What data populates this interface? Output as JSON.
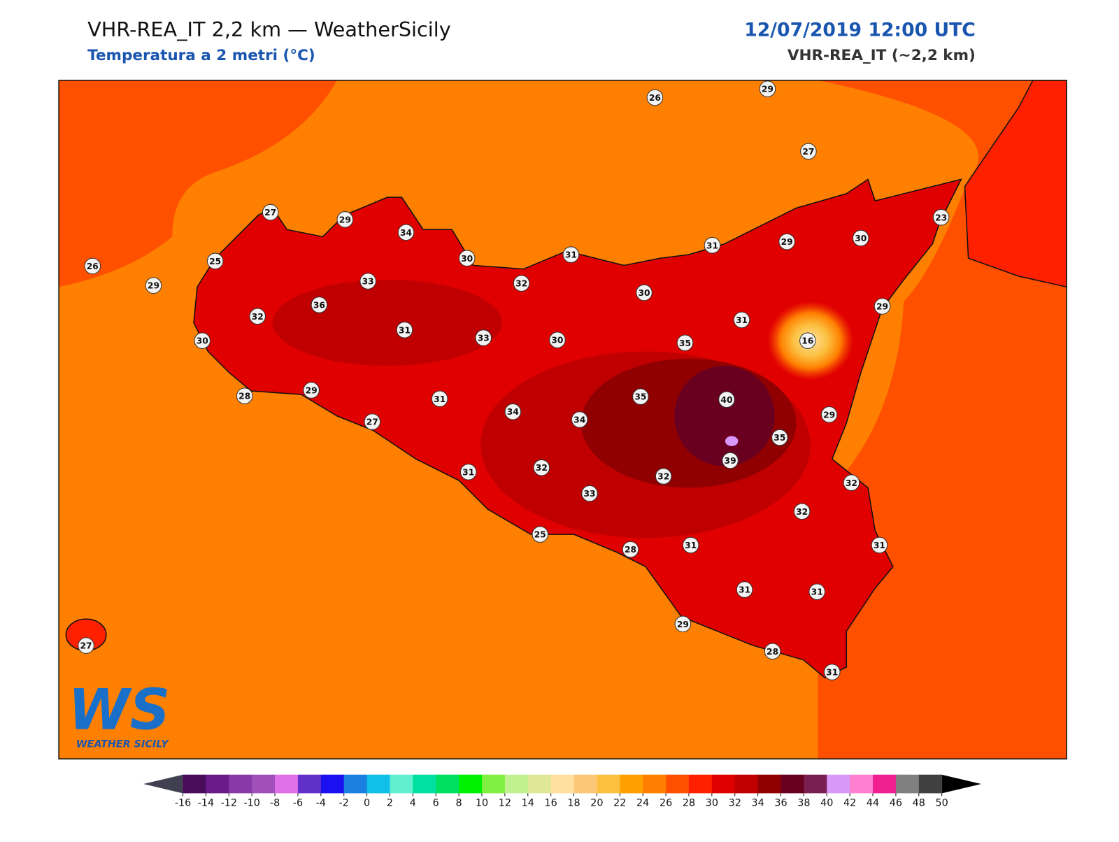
{
  "header": {
    "title": "VHR-REA_IT 2,2 km — WeatherSicily",
    "subtitle": "Temperatura a 2 metri (°C)",
    "date": "12/07/2019 12:00 UTC",
    "model": "VHR-REA_IT (~2,2 km)"
  },
  "stations": [
    27,
    29,
    34,
    26,
    25,
    29,
    30,
    31,
    31,
    29,
    30,
    23,
    26,
    29,
    27,
    33,
    32,
    30,
    32,
    36,
    31,
    33,
    30,
    31,
    35,
    16,
    29,
    30,
    28,
    29,
    31,
    27,
    34,
    34,
    35,
    40,
    29,
    35,
    39,
    31,
    32,
    32,
    33,
    32,
    32,
    25,
    28,
    31,
    31,
    31,
    31,
    29,
    28,
    31,
    27
  ],
  "logo": {
    "mark": "WS",
    "name": "WEATHER SICILY"
  },
  "colorbar": {
    "ticks": [
      -16,
      -14,
      -12,
      -10,
      -8,
      -6,
      -4,
      -2,
      0,
      2,
      4,
      6,
      8,
      10,
      12,
      14,
      16,
      18,
      20,
      22,
      24,
      26,
      28,
      30,
      32,
      34,
      36,
      38,
      40,
      42,
      44,
      46,
      48,
      50
    ],
    "colors": [
      "#4a0b5a",
      "#6a1a8a",
      "#8a3aa8",
      "#a050b8",
      "#e070e8",
      "#6030c8",
      "#1a10f0",
      "#1a80e0",
      "#10c0e8",
      "#60f0d0",
      "#00e0a0",
      "#00e060",
      "#00f000",
      "#80f040",
      "#c0f090",
      "#e0e898",
      "#ffe0a0",
      "#fcc878",
      "#fcc040",
      "#ffa000",
      "#ff8000",
      "#ff5000",
      "#ff2000",
      "#e00000",
      "#c00000",
      "#900000",
      "#6a0020",
      "#7a2050",
      "#d898f8",
      "#ff80d0",
      "#f02090",
      "#808080",
      "#404040"
    ],
    "under": "#404050",
    "over": "#000000"
  }
}
